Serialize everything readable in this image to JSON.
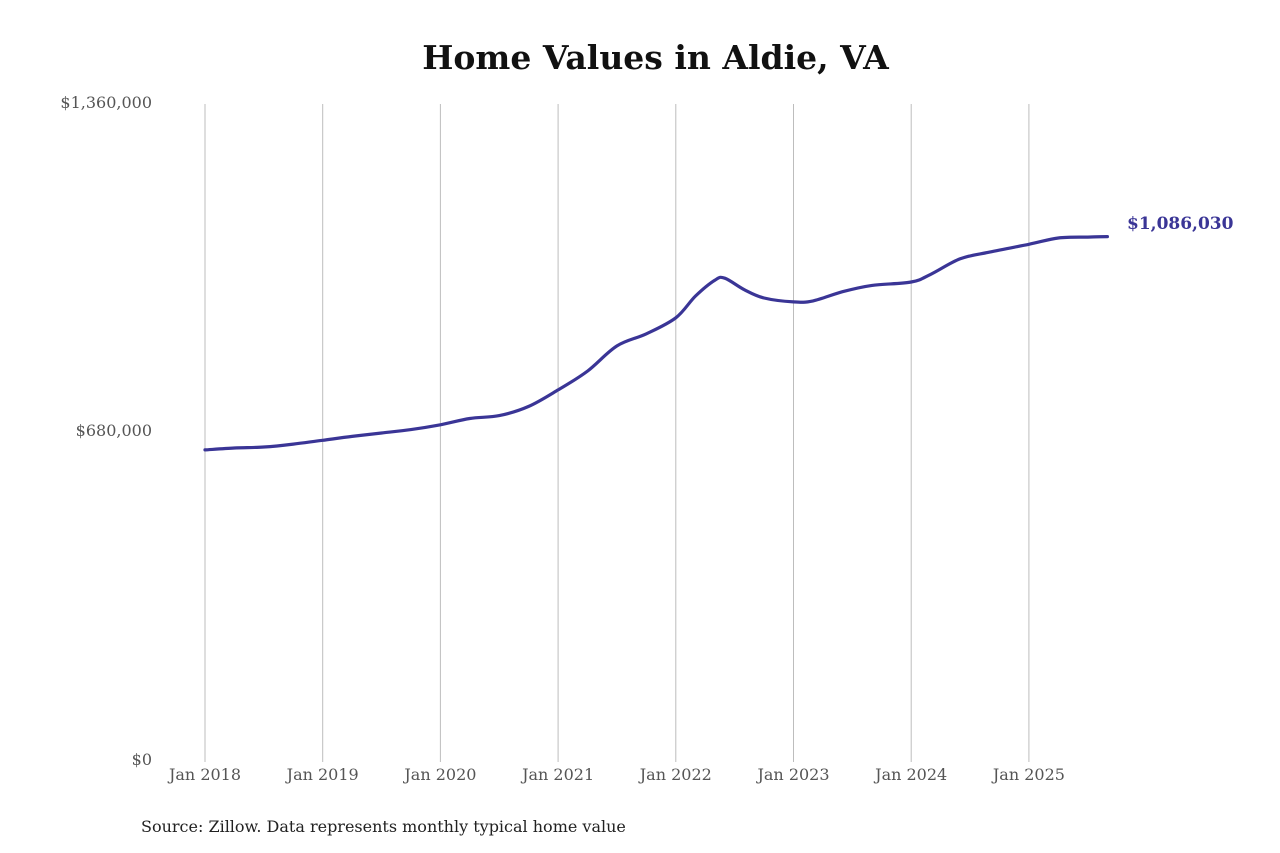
{
  "chart_data": {
    "type": "line",
    "title": "Home Values in Aldie, VA",
    "xlabel": "",
    "ylabel": "",
    "ylim": [
      0,
      1360000
    ],
    "y_ticks": [
      "$0",
      "$680,000",
      "$1,360,000"
    ],
    "x_ticks": [
      "Jan 2018",
      "Jan 2019",
      "Jan 2020",
      "Jan 2021",
      "Jan 2022",
      "Jan 2023",
      "Jan 2024",
      "Jan 2025"
    ],
    "grid": {
      "vertical": true,
      "horizontal": false
    },
    "legend": null,
    "line_color": "#3a3596",
    "series": [
      {
        "name": "Typical home value",
        "x": [
          "2018-01",
          "2018-04",
          "2018-07",
          "2018-10",
          "2019-01",
          "2019-04",
          "2019-07",
          "2019-10",
          "2020-01",
          "2020-04",
          "2020-07",
          "2020-10",
          "2021-01",
          "2021-04",
          "2021-07",
          "2021-10",
          "2022-01",
          "2022-03",
          "2022-05",
          "2022-06",
          "2022-08",
          "2022-10",
          "2023-01",
          "2023-03",
          "2023-06",
          "2023-09",
          "2024-01",
          "2024-03",
          "2024-06",
          "2024-09",
          "2025-01",
          "2025-04",
          "2025-07",
          "2025-09"
        ],
        "values": [
          645000,
          649000,
          651000,
          657000,
          665000,
          673000,
          680000,
          687000,
          697000,
          710000,
          716000,
          735000,
          769000,
          808000,
          860000,
          885000,
          918000,
          963000,
          996000,
          1000000,
          976000,
          959000,
          951000,
          953000,
          972000,
          985000,
          992000,
          1008000,
          1040000,
          1054000,
          1070000,
          1083000,
          1085000,
          1086030
        ]
      }
    ],
    "end_label": "$1,086,030"
  },
  "title": "Home Values in Aldie, VA",
  "y_axis": {
    "top": "$1,360,000",
    "mid": "$680,000",
    "bottom": "$0"
  },
  "x_axis": {
    "ticks": [
      "Jan 2018",
      "Jan 2019",
      "Jan 2020",
      "Jan 2021",
      "Jan 2022",
      "Jan 2023",
      "Jan 2024",
      "Jan 2025"
    ]
  },
  "end_value_label": "$1,086,030",
  "source_note": "Source: Zillow. Data represents monthly typical home value"
}
